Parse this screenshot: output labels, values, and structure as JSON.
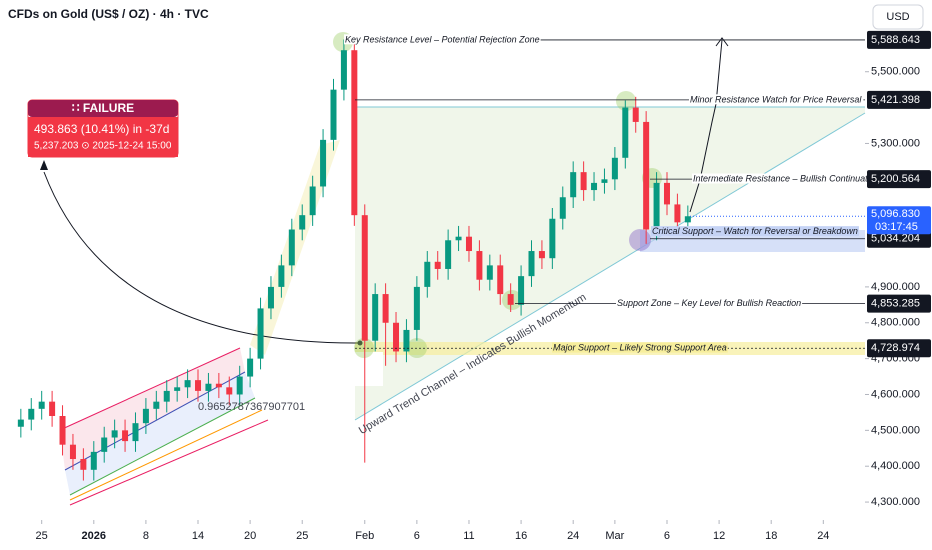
{
  "header": {
    "title": "CFDs on Gold (US$ / OZ) · 4h · TVC",
    "currency": "USD"
  },
  "chart_data": {
    "type": "candlestick",
    "x": [
      -2,
      -1,
      0,
      1,
      2,
      3,
      4,
      5,
      6,
      7,
      8,
      9,
      10,
      11,
      12,
      13,
      14,
      15,
      16,
      17,
      18,
      19,
      20,
      21,
      22,
      23,
      24,
      25,
      26,
      27,
      28,
      29,
      30,
      31,
      32,
      33,
      34,
      35,
      36,
      37,
      38,
      39,
      40,
      41,
      42,
      43,
      44,
      45,
      46,
      47,
      48,
      49,
      50,
      51,
      52,
      53,
      54,
      55,
      56,
      57,
      58,
      59,
      60,
      61,
      62
    ],
    "open": [
      4510,
      4530,
      4560,
      4580,
      4540,
      4460,
      4420,
      4390,
      4440,
      4480,
      4500,
      4470,
      4520,
      4560,
      4580,
      4610,
      4620,
      4640,
      4610,
      4630,
      4620,
      4600,
      4650,
      4700,
      4840,
      4900,
      4960,
      5060,
      5100,
      5180,
      5310,
      5450,
      5560,
      5100,
      4750,
      4880,
      4800,
      4720,
      4780,
      4900,
      4970,
      4950,
      5030,
      5040,
      5000,
      4920,
      4960,
      4880,
      4850,
      4930,
      5000,
      4980,
      5090,
      5150,
      5220,
      5170,
      5190,
      5200,
      5260,
      5400,
      5360,
      5060,
      5190,
      5130,
      5080
    ],
    "high": [
      4560,
      4590,
      4610,
      4610,
      4570,
      4490,
      4450,
      4470,
      4510,
      4530,
      4530,
      4550,
      4590,
      4610,
      4640,
      4650,
      4670,
      4670,
      4660,
      4660,
      4650,
      4680,
      4730,
      4870,
      4930,
      4990,
      5090,
      5130,
      5210,
      5340,
      5480,
      5590,
      5580,
      5130,
      4910,
      4910,
      4830,
      4810,
      4930,
      5000,
      5000,
      5060,
      5070,
      5070,
      5030,
      4990,
      4990,
      4910,
      4960,
      5030,
      5030,
      5120,
      5180,
      5250,
      5250,
      5220,
      5230,
      5290,
      5420,
      5430,
      5390,
      5220,
      5220,
      5160,
      5127
    ],
    "low": [
      4480,
      4500,
      4530,
      4510,
      4430,
      4390,
      4360,
      4360,
      4410,
      4450,
      4440,
      4440,
      4490,
      4530,
      4550,
      4580,
      4590,
      4580,
      4580,
      4590,
      4570,
      4570,
      4620,
      4670,
      4810,
      4870,
      4930,
      5030,
      5070,
      5150,
      5280,
      5420,
      5070,
      4410,
      4720,
      4680,
      4690,
      4690,
      4750,
      4870,
      4920,
      4920,
      5000,
      4970,
      4890,
      4890,
      4850,
      4830,
      4820,
      4900,
      4950,
      4950,
      5060,
      5120,
      5140,
      5140,
      5160,
      5170,
      5230,
      5330,
      5020,
      5030,
      5100,
      5050,
      5050
    ],
    "close": [
      4530,
      4560,
      4580,
      4540,
      4460,
      4420,
      4390,
      4440,
      4480,
      4500,
      4470,
      4520,
      4560,
      4580,
      4610,
      4620,
      4640,
      4610,
      4630,
      4620,
      4600,
      4650,
      4700,
      4840,
      4900,
      4960,
      5060,
      5100,
      5180,
      5310,
      5450,
      5560,
      5100,
      4750,
      4880,
      4800,
      4720,
      4780,
      4900,
      4970,
      4950,
      5030,
      5040,
      5000,
      4920,
      4960,
      4880,
      4850,
      4930,
      5000,
      4980,
      5090,
      5150,
      5220,
      5170,
      5190,
      5200,
      5260,
      5400,
      5360,
      5060,
      5190,
      5130,
      5080,
      5097
    ],
    "up_color": "#089981",
    "down_color": "#f23645",
    "xlim": [
      -4,
      79
    ],
    "xticks": [
      {
        "value": 0,
        "label": "25"
      },
      {
        "value": 5,
        "label": "2026"
      },
      {
        "value": 10,
        "label": "8"
      },
      {
        "value": 15,
        "label": "14"
      },
      {
        "value": 20,
        "label": "20"
      },
      {
        "value": 25,
        "label": "25"
      },
      {
        "value": 31,
        "label": "Feb"
      },
      {
        "value": 36,
        "label": "6"
      },
      {
        "value": 41,
        "label": "11"
      },
      {
        "value": 46,
        "label": "16"
      },
      {
        "value": 51,
        "label": "24"
      },
      {
        "value": 55,
        "label": "Mar"
      },
      {
        "value": 60,
        "label": "6"
      },
      {
        "value": 65,
        "label": "12"
      },
      {
        "value": 70,
        "label": "18"
      },
      {
        "value": 75,
        "label": "24"
      }
    ],
    "ylim": [
      4250,
      5700
    ],
    "yticks": [
      {
        "value": 5500,
        "label": "5,500.000"
      },
      {
        "value": 5300,
        "label": "5,300.000"
      },
      {
        "value": 4900,
        "label": "4,900.000"
      },
      {
        "value": 4800,
        "label": "4,800.000"
      },
      {
        "value": 4700,
        "label": "4,700.000"
      },
      {
        "value": 4600,
        "label": "4,600.000"
      },
      {
        "value": 4500,
        "label": "4,500.000"
      },
      {
        "value": 4400,
        "label": "4,400.000"
      },
      {
        "value": 4300,
        "label": "4,300.000"
      }
    ],
    "levels": [
      {
        "value": 5588.643,
        "label": "5,588.643",
        "text": "Key Resistance Level – Potential Rejection Zone"
      },
      {
        "value": 5421.398,
        "label": "5,421.398",
        "text": "Minor Resistance Watch for Price Reversal"
      },
      {
        "value": 5200.564,
        "label": "5,200.564",
        "text": "Intermediate Resistance – Bullish Continuation Zone"
      },
      {
        "value": 5034.204,
        "label": "5,034.204",
        "text": "Critical Support – Watch for Reversal or Breakdown"
      },
      {
        "value": 4853.285,
        "label": "4,853.285",
        "text": "Support Zone – Key Level for Bullish Reaction"
      },
      {
        "value": 4728.974,
        "label": "4,728.974",
        "text": "Major Support – Likely Strong Support Area"
      }
    ],
    "last_price": {
      "value": 5096.83,
      "label": "5,096.830",
      "countdown": "03:17:45"
    },
    "annotations": {
      "fib_value": "0.9652787367907701",
      "channel": "Upward Trend Channel – Indicates Bullish Momentum"
    },
    "failure": {
      "title": "∷ FAILURE",
      "change": "493.863 (10.41%) in -37d",
      "detail": "5,237.203 ⊙ 2025-12-24  15:00"
    }
  }
}
